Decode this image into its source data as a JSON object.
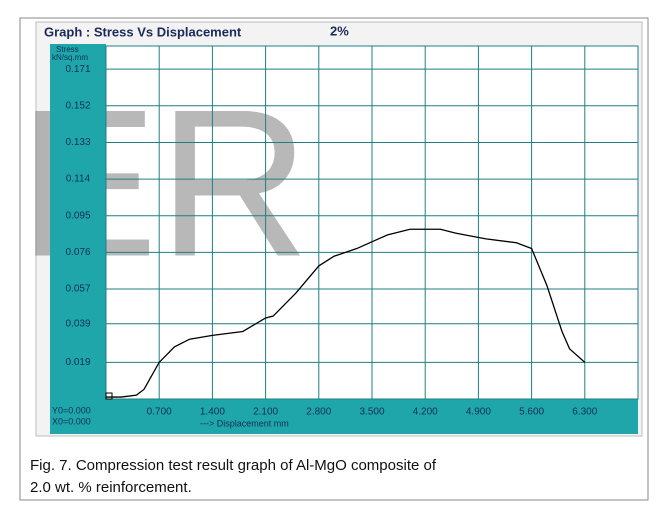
{
  "chart_data": {
    "type": "line",
    "title": "Graph :  Stress Vs Displacement",
    "subtitle": "2%",
    "y_label": [
      "Stress",
      "kN/sq.mm"
    ],
    "x_label": "---> Displacement  mm",
    "origin_labels": [
      "Y0=0.000",
      "X0=0.000"
    ],
    "watermark": "ER",
    "caption": [
      "Fig. 7. Compression test result graph of Al-MgO composite of",
      "2.0 wt. % reinforcement."
    ],
    "x": [
      0,
      0.2,
      0.4,
      0.5,
      0.6,
      0.7,
      0.9,
      1.1,
      1.4,
      1.8,
      2.1,
      2.2,
      2.5,
      2.8,
      3.0,
      3.3,
      3.7,
      4.0,
      4.4,
      4.6,
      5.0,
      5.4,
      5.6,
      5.8,
      6.0,
      6.1,
      6.3
    ],
    "series": [
      {
        "name": "Stress",
        "color": "#000000",
        "values": [
          0.001,
          0.001,
          0.002,
          0.005,
          0.012,
          0.019,
          0.027,
          0.031,
          0.033,
          0.035,
          0.042,
          0.043,
          0.055,
          0.069,
          0.074,
          0.078,
          0.085,
          0.088,
          0.088,
          0.086,
          0.083,
          0.081,
          0.078,
          0.059,
          0.035,
          0.026,
          0.019
        ]
      }
    ],
    "xlim": [
      0,
      7.0
    ],
    "xticks": [
      {
        "value": 0.7,
        "label": "0.700"
      },
      {
        "value": 1.4,
        "label": "1.400"
      },
      {
        "value": 2.1,
        "label": "2.100"
      },
      {
        "value": 2.8,
        "label": "2.800"
      },
      {
        "value": 3.5,
        "label": "3.500"
      },
      {
        "value": 4.2,
        "label": "4.200"
      },
      {
        "value": 4.9,
        "label": "4.900"
      },
      {
        "value": 5.6,
        "label": "5.600"
      },
      {
        "value": 6.3,
        "label": "6.300"
      }
    ],
    "ylim": [
      0,
      0.183
    ],
    "yticks": [
      0.019,
      0.039,
      0.057,
      0.076,
      0.095,
      0.114,
      0.133,
      0.152,
      0.171
    ],
    "grid": true,
    "grid_color": "#1f7f80",
    "panel_color": "#1ea6aa"
  }
}
